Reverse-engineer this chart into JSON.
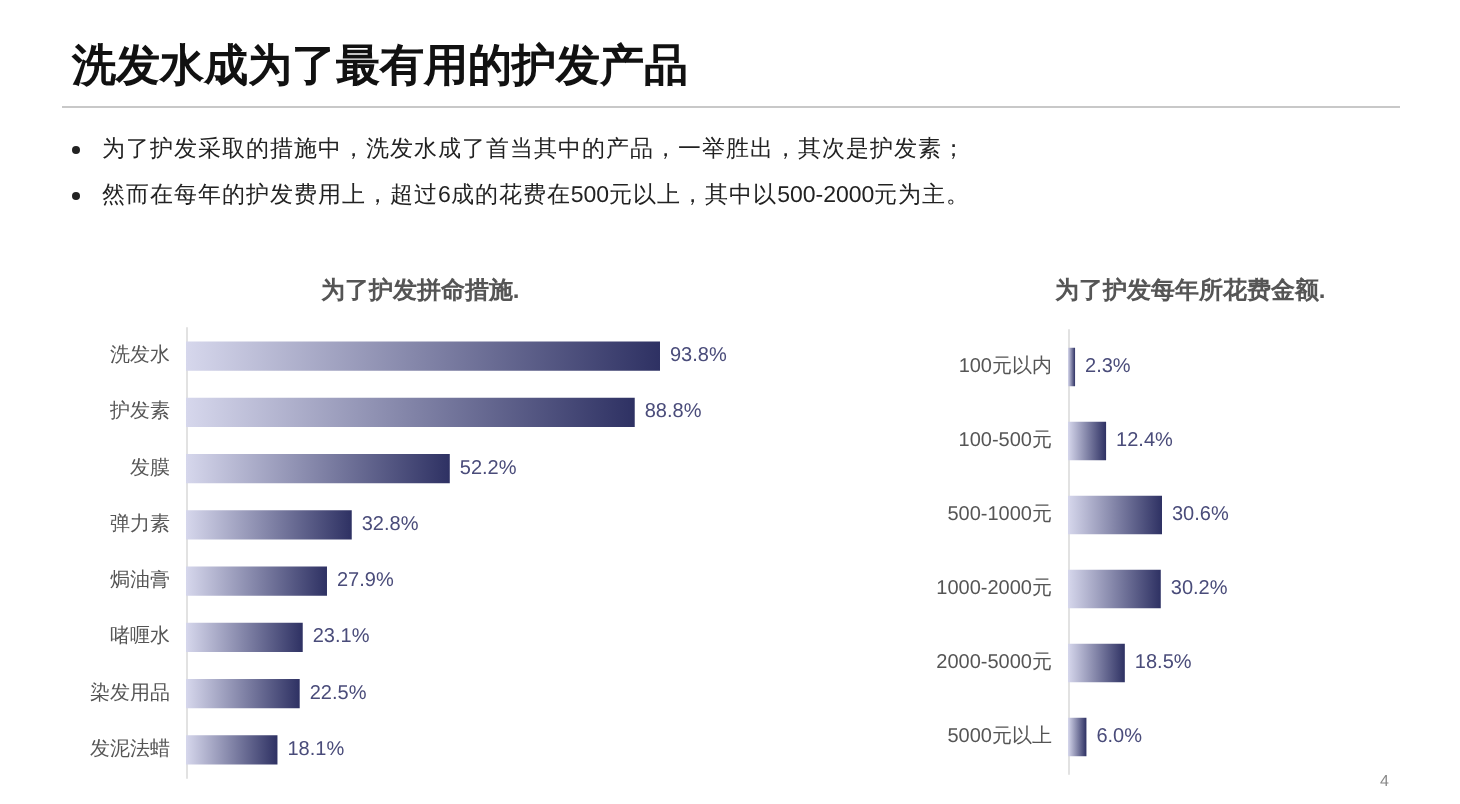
{
  "chart_data": [
    {
      "type": "other",
      "title": "洗发水成为了最有用的护发产品",
      "annotations": [
        "为了护发采取的措施中，洗发水成了首当其中的产品，一举胜出，其次是护发素；",
        "然而在每年的护发费用上，超过6成的花费在500元以上，其中以500-2000元为主。",
        "4"
      ]
    },
    {
      "type": "bar",
      "orientation": "horizontal",
      "title": "为了护发拼命措施.",
      "categories": [
        "洗发水",
        "护发素",
        "发膜",
        "弹力素",
        "焗油膏",
        "啫喱水",
        "染发用品",
        "发泥法蜡"
      ],
      "values": [
        93.8,
        88.8,
        52.2,
        32.8,
        27.9,
        23.1,
        22.5,
        18.1
      ],
      "value_labels": [
        "93.8%",
        "88.8%",
        "52.2%",
        "32.8%",
        "27.9%",
        "23.1%",
        "22.5%",
        "18.1%"
      ],
      "color": "#2e3163"
    },
    {
      "type": "bar",
      "orientation": "horizontal",
      "title": "为了护发每年所花费金额.",
      "categories": [
        "100元以内",
        "100-500元",
        "500-1000元",
        "1000-2000元",
        "2000-5000元",
        "5000元以上"
      ],
      "values": [
        2.3,
        12.4,
        30.6,
        30.2,
        18.5,
        6.0
      ],
      "value_labels": [
        "2.3%",
        "12.4%",
        "30.6%",
        "30.2%",
        "18.5%",
        "6.0%"
      ],
      "color": "#2e3163"
    }
  ]
}
